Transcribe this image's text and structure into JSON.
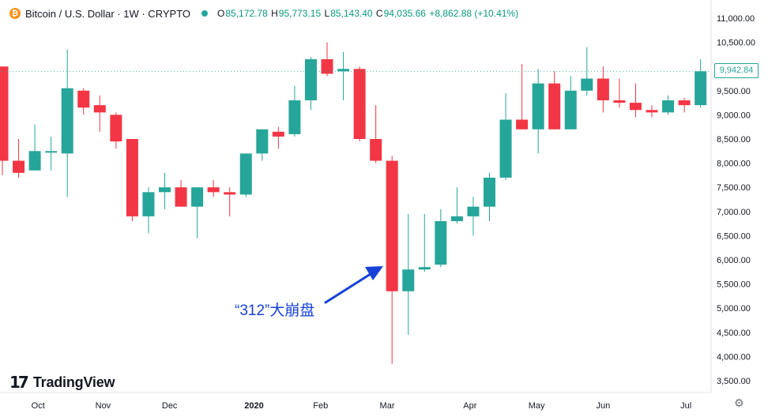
{
  "header": {
    "coin_symbol": "₿",
    "title": "Bitcoin / U.S. Dollar · 1W · CRYPTO",
    "open_label": "O",
    "open": "85,172.78",
    "high_label": "H",
    "high": "95,773.15",
    "low_label": "L",
    "low": "85,143.40",
    "close_label": "C",
    "close": "94,035.66",
    "change": "+8,862.88 (+10.41%)"
  },
  "logo": {
    "mark": "17",
    "name": "TradingView"
  },
  "annotation": "“312”大崩盘",
  "last_price_label": "9,942.84",
  "colors": {
    "up": "#26a69a",
    "down": "#f23645",
    "arrow": "#1741d8"
  },
  "chart_data": {
    "type": "candlestick",
    "ylim": [
      3500,
      11000
    ],
    "y_ticks": [
      "11,000.00",
      "10,500.00",
      "10,000.00",
      "9,500.00",
      "9,000.00",
      "8,500.00",
      "8,000.00",
      "7,500.00",
      "7,000.00",
      "6,500.00",
      "6,000.00",
      "5,500.00",
      "5,000.00",
      "4,500.00",
      "4,000.00",
      "3,500.00"
    ],
    "x_ticks": [
      {
        "label": "Oct",
        "index": 2.2
      },
      {
        "label": "Nov",
        "index": 6.2
      },
      {
        "label": "Dec",
        "index": 10.3
      },
      {
        "label": "2020",
        "index": 15.5
      },
      {
        "label": "Feb",
        "index": 19.6
      },
      {
        "label": "Mar",
        "index": 23.7
      },
      {
        "label": "Apr",
        "index": 28.8
      },
      {
        "label": "May",
        "index": 32.9
      },
      {
        "label": "Jun",
        "index": 37.0
      },
      {
        "label": "Jul",
        "index": 42.1
      }
    ],
    "candles": [
      {
        "o": 10000,
        "h": 10000,
        "l": 7750,
        "c": 8050
      },
      {
        "o": 8050,
        "h": 8500,
        "l": 7700,
        "c": 7800
      },
      {
        "o": 7850,
        "h": 8800,
        "l": 7850,
        "c": 8250
      },
      {
        "o": 8250,
        "h": 8550,
        "l": 7850,
        "c": 8250
      },
      {
        "o": 8200,
        "h": 10350,
        "l": 7300,
        "c": 9550
      },
      {
        "o": 9500,
        "h": 9550,
        "l": 9000,
        "c": 9150
      },
      {
        "o": 9200,
        "h": 9400,
        "l": 8650,
        "c": 9050
      },
      {
        "o": 9000,
        "h": 9050,
        "l": 8300,
        "c": 8450
      },
      {
        "o": 8500,
        "h": 8500,
        "l": 6800,
        "c": 6900
      },
      {
        "o": 6900,
        "h": 7500,
        "l": 6550,
        "c": 7400
      },
      {
        "o": 7400,
        "h": 7800,
        "l": 7050,
        "c": 7500
      },
      {
        "o": 7500,
        "h": 7650,
        "l": 7100,
        "c": 7100
      },
      {
        "o": 7100,
        "h": 7500,
        "l": 6450,
        "c": 7500
      },
      {
        "o": 7500,
        "h": 7650,
        "l": 7300,
        "c": 7400
      },
      {
        "o": 7400,
        "h": 7500,
        "l": 6900,
        "c": 7350
      },
      {
        "o": 7350,
        "h": 8200,
        "l": 7300,
        "c": 8200
      },
      {
        "o": 8200,
        "h": 8700,
        "l": 8050,
        "c": 8700
      },
      {
        "o": 8650,
        "h": 8750,
        "l": 8300,
        "c": 8550
      },
      {
        "o": 8600,
        "h": 9600,
        "l": 8550,
        "c": 9300
      },
      {
        "o": 9300,
        "h": 10200,
        "l": 9100,
        "c": 10150
      },
      {
        "o": 10150,
        "h": 10500,
        "l": 9800,
        "c": 9850
      },
      {
        "o": 9900,
        "h": 10300,
        "l": 9300,
        "c": 9950
      },
      {
        "o": 9950,
        "h": 10000,
        "l": 8450,
        "c": 8500
      },
      {
        "o": 8500,
        "h": 9200,
        "l": 8000,
        "c": 8050
      },
      {
        "o": 8050,
        "h": 8150,
        "l": 3850,
        "c": 5350
      },
      {
        "o": 5350,
        "h": 6950,
        "l": 4450,
        "c": 5800
      },
      {
        "o": 5800,
        "h": 6950,
        "l": 5750,
        "c": 5850
      },
      {
        "o": 5900,
        "h": 7050,
        "l": 5850,
        "c": 6800
      },
      {
        "o": 6800,
        "h": 7500,
        "l": 6750,
        "c": 6900
      },
      {
        "o": 6900,
        "h": 7300,
        "l": 6500,
        "c": 7100
      },
      {
        "o": 7100,
        "h": 7800,
        "l": 6800,
        "c": 7700
      },
      {
        "o": 7700,
        "h": 9450,
        "l": 7650,
        "c": 8900
      },
      {
        "o": 8900,
        "h": 10050,
        "l": 8700,
        "c": 8700
      },
      {
        "o": 8700,
        "h": 9950,
        "l": 8200,
        "c": 9650
      },
      {
        "o": 9650,
        "h": 9900,
        "l": 8700,
        "c": 8700
      },
      {
        "o": 8700,
        "h": 9800,
        "l": 8700,
        "c": 9500
      },
      {
        "o": 9500,
        "h": 10400,
        "l": 9400,
        "c": 9750
      },
      {
        "o": 9750,
        "h": 10000,
        "l": 9050,
        "c": 9300
      },
      {
        "o": 9300,
        "h": 9750,
        "l": 9150,
        "c": 9250
      },
      {
        "o": 9250,
        "h": 9650,
        "l": 8950,
        "c": 9100
      },
      {
        "o": 9100,
        "h": 9200,
        "l": 8950,
        "c": 9050
      },
      {
        "o": 9050,
        "h": 9400,
        "l": 9000,
        "c": 9300
      },
      {
        "o": 9300,
        "h": 9350,
        "l": 9050,
        "c": 9200
      },
      {
        "o": 9200,
        "h": 10150,
        "l": 9150,
        "c": 9900
      }
    ]
  }
}
